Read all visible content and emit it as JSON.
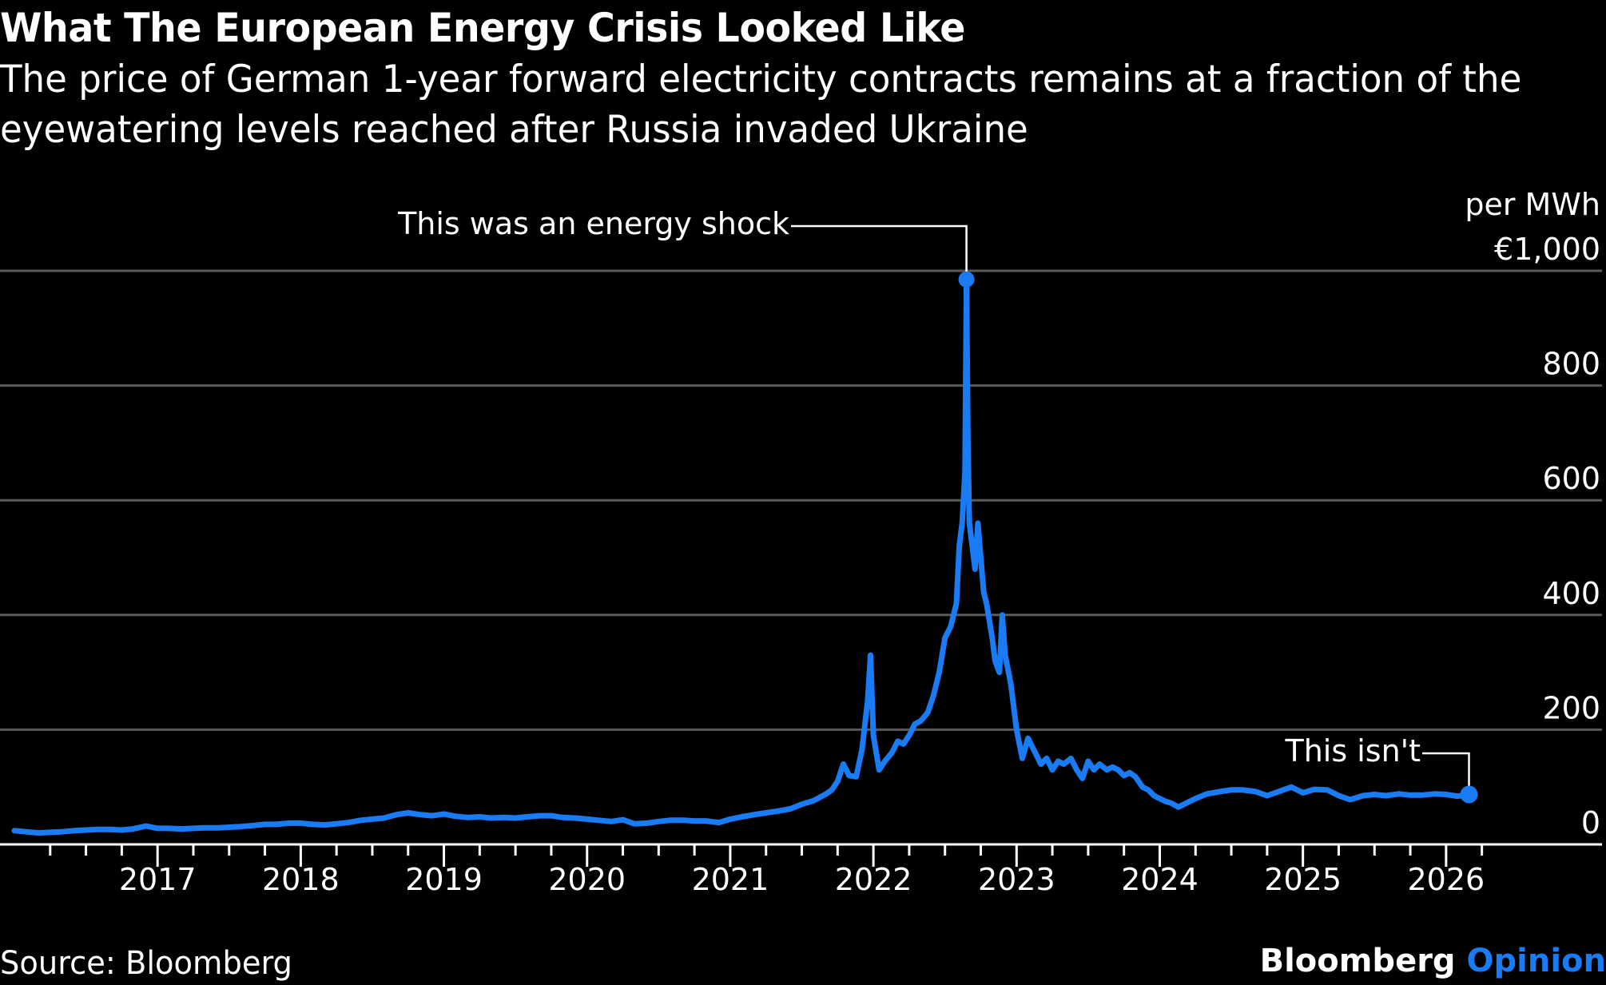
{
  "header": {
    "title": "What The European Energy Crisis Looked Like",
    "subtitle": "The price of German 1-year forward electricity contracts remains at a fraction of the eyewatering levels reached after Russia invaded Ukraine"
  },
  "footer": {
    "source": "Source: Bloomberg",
    "brand_main": "Bloomberg",
    "brand_accent": "Opinion"
  },
  "colors": {
    "line": "#1a7cf5",
    "grid": "#5a5a5a",
    "axis": "#ffffff",
    "background": "#000000"
  },
  "chart_data": {
    "type": "line",
    "title": "What The European Energy Crisis Looked Like",
    "subtitle": "The price of German 1-year forward electricity contracts remains at a fraction of the eyewatering levels reached after Russia invaded Ukraine",
    "xlabel": "",
    "ylabel": "per MWh",
    "y_unit_label": "per MWh",
    "y_ticks": [
      0,
      200,
      400,
      600,
      800,
      1000
    ],
    "y_tick_labels": [
      "0",
      "200",
      "400",
      "600",
      "800",
      "€1,000"
    ],
    "ylim": [
      0,
      1000
    ],
    "x_ticks": [
      2017,
      2018,
      2019,
      2020,
      2021,
      2022,
      2023,
      2024,
      2025,
      2026
    ],
    "x_tick_labels": [
      "2017",
      "2018",
      "2019",
      "2020",
      "2021",
      "2022",
      "2023",
      "2024",
      "2025",
      "2026"
    ],
    "xlim": [
      2016.0,
      2027.05
    ],
    "grid": true,
    "legend": "none",
    "annotations": [
      {
        "text": "This was an energy shock",
        "x": 2022.65,
        "y": 985
      },
      {
        "text": "This isn't",
        "x": 2026.16,
        "y": 87
      }
    ],
    "series": [
      {
        "name": "German 1-year forward electricity (€/MWh)",
        "x": [
          2016.0,
          2016.08,
          2016.17,
          2016.25,
          2016.33,
          2016.42,
          2016.5,
          2016.58,
          2016.67,
          2016.75,
          2016.83,
          2016.92,
          2017.0,
          2017.08,
          2017.17,
          2017.25,
          2017.33,
          2017.42,
          2017.5,
          2017.58,
          2017.67,
          2017.75,
          2017.83,
          2017.92,
          2018.0,
          2018.08,
          2018.17,
          2018.25,
          2018.33,
          2018.42,
          2018.5,
          2018.58,
          2018.67,
          2018.75,
          2018.83,
          2018.92,
          2019.0,
          2019.08,
          2019.17,
          2019.25,
          2019.33,
          2019.42,
          2019.5,
          2019.58,
          2019.67,
          2019.75,
          2019.83,
          2019.92,
          2020.0,
          2020.08,
          2020.17,
          2020.25,
          2020.33,
          2020.42,
          2020.5,
          2020.58,
          2020.67,
          2020.75,
          2020.83,
          2020.92,
          2021.0,
          2021.08,
          2021.17,
          2021.25,
          2021.33,
          2021.42,
          2021.5,
          2021.58,
          2021.67,
          2021.71,
          2021.75,
          2021.79,
          2021.83,
          2021.88,
          2021.92,
          2021.96,
          2021.98,
          2022.0,
          2022.04,
          2022.08,
          2022.13,
          2022.17,
          2022.21,
          2022.25,
          2022.29,
          2022.33,
          2022.38,
          2022.42,
          2022.46,
          2022.5,
          2022.54,
          2022.58,
          2022.6,
          2022.62,
          2022.64,
          2022.65,
          2022.66,
          2022.67,
          2022.69,
          2022.71,
          2022.73,
          2022.75,
          2022.77,
          2022.79,
          2022.81,
          2022.83,
          2022.85,
          2022.88,
          2022.9,
          2022.92,
          2022.96,
          2023.0,
          2023.04,
          2023.08,
          2023.13,
          2023.17,
          2023.21,
          2023.25,
          2023.29,
          2023.33,
          2023.38,
          2023.42,
          2023.46,
          2023.5,
          2023.54,
          2023.58,
          2023.63,
          2023.67,
          2023.71,
          2023.75,
          2023.79,
          2023.83,
          2023.88,
          2023.92,
          2023.96,
          2024.0,
          2024.04,
          2024.08,
          2024.13,
          2024.17,
          2024.21,
          2024.25,
          2024.33,
          2024.42,
          2024.5,
          2024.58,
          2024.67,
          2024.75,
          2024.83,
          2024.92,
          2025.0,
          2025.08,
          2025.17,
          2025.25,
          2025.33,
          2025.42,
          2025.5,
          2025.58,
          2025.67,
          2025.75,
          2025.83,
          2025.92,
          2026.0,
          2026.08,
          2026.16
        ],
        "y": [
          24,
          22,
          20,
          21,
          22,
          24,
          25,
          26,
          26,
          25,
          27,
          32,
          28,
          28,
          27,
          28,
          29,
          29,
          30,
          31,
          33,
          35,
          35,
          37,
          37,
          35,
          34,
          36,
          38,
          42,
          44,
          46,
          52,
          55,
          52,
          50,
          53,
          49,
          47,
          48,
          46,
          47,
          46,
          48,
          50,
          50,
          47,
          46,
          44,
          42,
          40,
          43,
          36,
          37,
          40,
          42,
          42,
          41,
          41,
          38,
          44,
          48,
          52,
          55,
          58,
          62,
          70,
          76,
          88,
          95,
          110,
          140,
          120,
          118,
          165,
          250,
          330,
          190,
          130,
          145,
          160,
          180,
          175,
          190,
          210,
          215,
          230,
          260,
          300,
          360,
          380,
          420,
          520,
          560,
          650,
          985,
          700,
          560,
          520,
          480,
          560,
          500,
          440,
          420,
          390,
          360,
          320,
          300,
          400,
          330,
          280,
          200,
          150,
          185,
          160,
          140,
          150,
          130,
          145,
          140,
          150,
          130,
          115,
          145,
          130,
          140,
          130,
          135,
          130,
          120,
          125,
          118,
          100,
          95,
          85,
          80,
          75,
          72,
          65,
          70,
          75,
          80,
          88,
          92,
          95,
          95,
          92,
          85,
          92,
          100,
          90,
          96,
          95,
          85,
          78,
          85,
          87,
          85,
          88,
          86,
          86,
          88,
          87,
          84,
          87
        ]
      }
    ]
  }
}
